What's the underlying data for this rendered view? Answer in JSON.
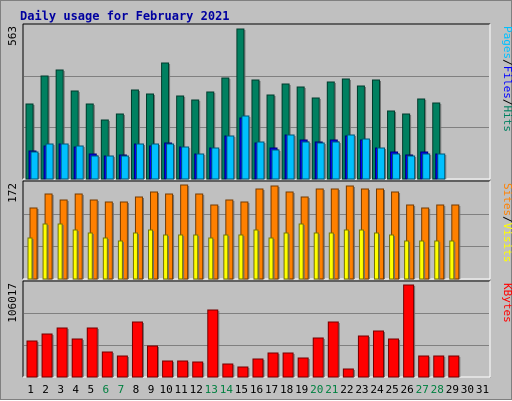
{
  "title": "Daily usage for February 2021",
  "colors": {
    "hits": "#008060",
    "files": "#0000ff",
    "pages": "#00c0ff",
    "visits": "#ffff00",
    "sites": "#ff8000",
    "kbytes": "#ff0000",
    "weekend_label": "#008040",
    "weekday_label": "#000000",
    "title": "#0000a0"
  },
  "legend": {
    "top": [
      "Pages",
      "/",
      "Files",
      "/",
      "Hits"
    ],
    "mid": [
      "Sites",
      "/",
      "Visits"
    ],
    "bottom": [
      "KBytes"
    ]
  },
  "chart_data": [
    {
      "type": "bar",
      "name": "hits-files-pages",
      "categories": [
        "1",
        "2",
        "3",
        "4",
        "5",
        "6",
        "7",
        "8",
        "9",
        "10",
        "11",
        "12",
        "13",
        "14",
        "15",
        "16",
        "17",
        "18",
        "19",
        "20",
        "21",
        "22",
        "23",
        "24",
        "25",
        "26",
        "27",
        "28",
        "29",
        "30",
        "31"
      ],
      "max_label": "563",
      "ylim": [
        0,
        563
      ],
      "series": [
        {
          "name": "Hits",
          "values": [
            280,
            385,
            410,
            330,
            280,
            220,
            245,
            335,
            320,
            435,
            310,
            295,
            325,
            380,
            563,
            370,
            315,
            355,
            345,
            305,
            365,
            375,
            350,
            370,
            255,
            245,
            300,
            285,
            null,
            null,
            null
          ]
        },
        {
          "name": "Files",
          "values": [
            105,
            125,
            130,
            120,
            95,
            85,
            90,
            130,
            125,
            135,
            120,
            95,
            115,
            160,
            230,
            135,
            115,
            165,
            145,
            140,
            145,
            160,
            145,
            115,
            100,
            90,
            100,
            95,
            null,
            null,
            null
          ]
        },
        {
          "name": "Pages",
          "values": [
            100,
            130,
            130,
            125,
            85,
            85,
            85,
            130,
            130,
            130,
            120,
            95,
            115,
            160,
            235,
            140,
            110,
            165,
            140,
            135,
            140,
            165,
            150,
            115,
            95,
            85,
            95,
            95,
            null,
            null,
            null
          ]
        }
      ]
    },
    {
      "type": "bar",
      "name": "sites-visits",
      "categories": [
        "1",
        "2",
        "3",
        "4",
        "5",
        "6",
        "7",
        "8",
        "9",
        "10",
        "11",
        "12",
        "13",
        "14",
        "15",
        "16",
        "17",
        "18",
        "19",
        "20",
        "21",
        "22",
        "23",
        "24",
        "25",
        "26",
        "27",
        "28",
        "29",
        "30",
        "31"
      ],
      "max_label": "172",
      "ylim": [
        0,
        172
      ],
      "series": [
        {
          "name": "Sites",
          "values": [
            130,
            155,
            145,
            155,
            145,
            140,
            140,
            150,
            160,
            155,
            172,
            155,
            135,
            145,
            140,
            165,
            170,
            160,
            150,
            165,
            165,
            170,
            165,
            165,
            160,
            135,
            130,
            135,
            135,
            null,
            null
          ]
        },
        {
          "name": "Visits",
          "values": [
            75,
            100,
            100,
            90,
            85,
            75,
            70,
            85,
            90,
            80,
            80,
            80,
            75,
            80,
            80,
            90,
            75,
            85,
            100,
            85,
            85,
            90,
            90,
            85,
            80,
            70,
            70,
            70,
            70,
            null,
            null
          ]
        }
      ]
    },
    {
      "type": "bar",
      "name": "kbytes",
      "categories": [
        "1",
        "2",
        "3",
        "4",
        "5",
        "6",
        "7",
        "8",
        "9",
        "10",
        "11",
        "12",
        "13",
        "14",
        "15",
        "16",
        "17",
        "18",
        "19",
        "20",
        "21",
        "22",
        "23",
        "24",
        "25",
        "26",
        "27",
        "28",
        "29",
        "30",
        "31"
      ],
      "max_label": "106017",
      "ylim": [
        0,
        106017
      ],
      "series": [
        {
          "name": "KBytes",
          "values": [
            41000,
            50000,
            56000,
            44000,
            56000,
            29000,
            24000,
            63000,
            36000,
            19000,
            19000,
            17000,
            77000,
            15000,
            12000,
            21000,
            28000,
            28000,
            22000,
            45000,
            63000,
            9000,
            47000,
            53000,
            44000,
            106017,
            24000,
            24000,
            24000,
            null,
            null
          ]
        }
      ]
    }
  ],
  "weekend_days": [
    "6",
    "7",
    "13",
    "14",
    "20",
    "21",
    "27",
    "28"
  ]
}
